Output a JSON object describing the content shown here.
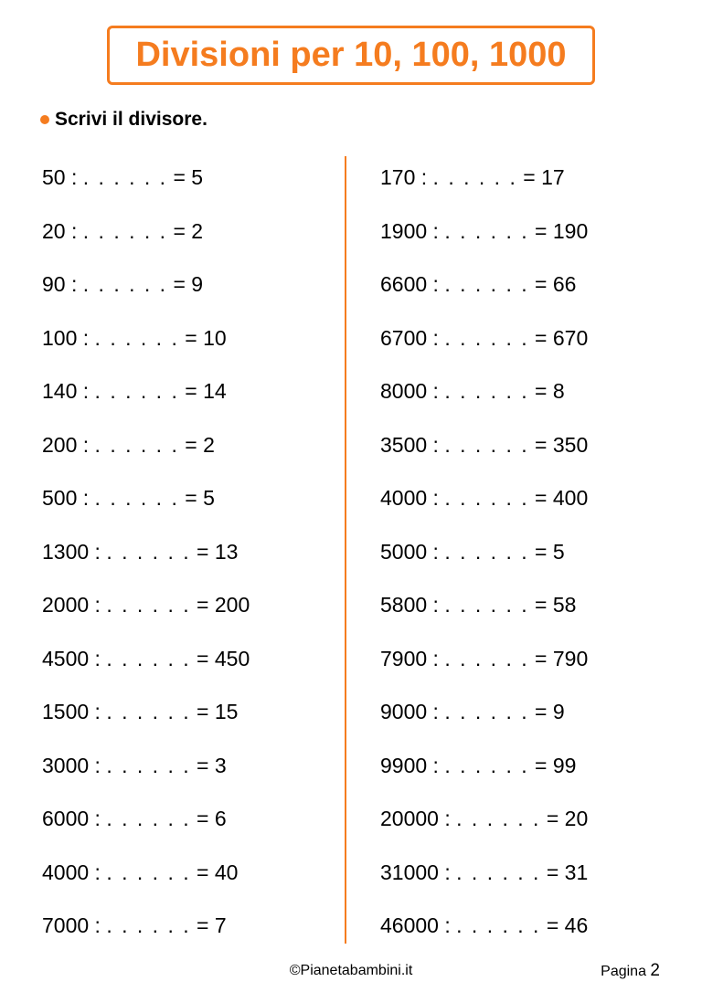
{
  "colors": {
    "accent": "#f57c1f",
    "text": "#000000"
  },
  "title": "Divisioni per 10, 100, 1000",
  "instruction": "Scrivi il divisore.",
  "dots": ". . . . . .",
  "left": [
    {
      "dividend": "50",
      "quotient": "5"
    },
    {
      "dividend": "20",
      "quotient": "2"
    },
    {
      "dividend": "90",
      "quotient": "9"
    },
    {
      "dividend": "100",
      "quotient": "10"
    },
    {
      "dividend": "140",
      "quotient": "14"
    },
    {
      "dividend": "200",
      "quotient": "2"
    },
    {
      "dividend": "500",
      "quotient": "5"
    },
    {
      "dividend": "1300",
      "quotient": "13"
    },
    {
      "dividend": "2000",
      "quotient": "200"
    },
    {
      "dividend": "4500",
      "quotient": "450"
    },
    {
      "dividend": "1500",
      "quotient": "15"
    },
    {
      "dividend": "3000",
      "quotient": "3"
    },
    {
      "dividend": "6000",
      "quotient": "6"
    },
    {
      "dividend": "4000",
      "quotient": "40"
    },
    {
      "dividend": "7000",
      "quotient": "7"
    }
  ],
  "right": [
    {
      "dividend": "170",
      "quotient": "17"
    },
    {
      "dividend": "1900",
      "quotient": "190"
    },
    {
      "dividend": "6600",
      "quotient": "66"
    },
    {
      "dividend": "6700",
      "quotient": "670"
    },
    {
      "dividend": "8000",
      "quotient": "8"
    },
    {
      "dividend": "3500",
      "quotient": "350"
    },
    {
      "dividend": "4000",
      "quotient": "400"
    },
    {
      "dividend": "5000",
      "quotient": "5"
    },
    {
      "dividend": "5800",
      "quotient": "58"
    },
    {
      "dividend": "7900",
      "quotient": "790"
    },
    {
      "dividend": "9000",
      "quotient": "9"
    },
    {
      "dividend": "9900",
      "quotient": "99"
    },
    {
      "dividend": "20000",
      "quotient": "20"
    },
    {
      "dividend": "31000",
      "quotient": "31"
    },
    {
      "dividend": "46000",
      "quotient": "46"
    }
  ],
  "footer": {
    "copyright": "©Pianetabambini.it",
    "page_label": "Pagina",
    "page_number": "2"
  }
}
